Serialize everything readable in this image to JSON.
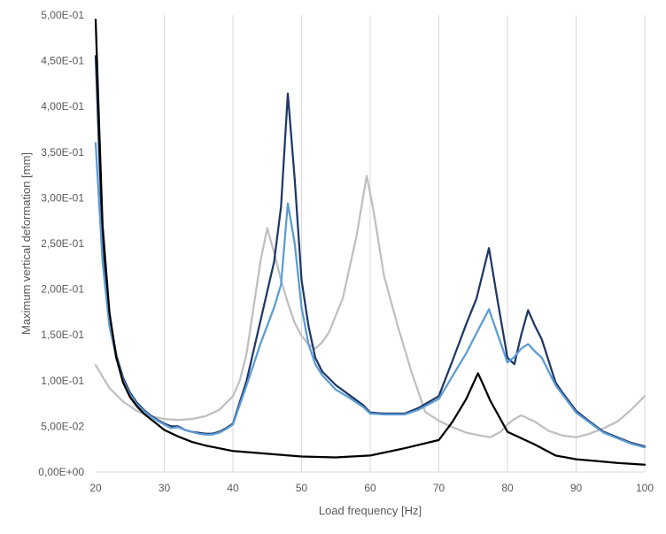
{
  "chart_data": {
    "type": "line",
    "title": "",
    "xlabel": "Load frequency [Hz]",
    "ylabel": "Maximum vertical deformation [mm]",
    "xlim": [
      20,
      100
    ],
    "ylim": [
      0,
      0.5
    ],
    "x_ticks": [
      20,
      30,
      40,
      50,
      60,
      70,
      80,
      90,
      100
    ],
    "x_tick_labels": [
      "20",
      "30",
      "40",
      "50",
      "60",
      "70",
      "80",
      "90",
      "100"
    ],
    "y_ticks": [
      0,
      0.05,
      0.1,
      0.15,
      0.2,
      0.25,
      0.3,
      0.35,
      0.4,
      0.45,
      0.5
    ],
    "y_tick_labels": [
      "0,00E+00",
      "5,00E-02",
      "1,00E-01",
      "1,50E-01",
      "2,00E-01",
      "2,50E-01",
      "3,00E-01",
      "3,50E-01",
      "4,00E-01",
      "4,50E-01",
      "5,00E-01"
    ],
    "grid": "vertical",
    "legend": "none",
    "series": [
      {
        "color": "#bfbfbf",
        "points": [
          [
            20,
            0.117
          ],
          [
            22,
            0.092
          ],
          [
            24,
            0.077
          ],
          [
            26,
            0.067
          ],
          [
            28,
            0.061
          ],
          [
            30,
            0.058
          ],
          [
            32,
            0.057
          ],
          [
            34,
            0.058
          ],
          [
            36,
            0.061
          ],
          [
            38,
            0.068
          ],
          [
            40,
            0.083
          ],
          [
            41,
            0.1
          ],
          [
            42,
            0.13
          ],
          [
            43,
            0.18
          ],
          [
            44,
            0.23
          ],
          [
            45,
            0.267
          ],
          [
            46,
            0.24
          ],
          [
            47,
            0.21
          ],
          [
            48,
            0.185
          ],
          [
            49,
            0.163
          ],
          [
            50,
            0.149
          ],
          [
            51,
            0.14
          ],
          [
            52,
            0.135
          ],
          [
            53,
            0.142
          ],
          [
            54,
            0.153
          ],
          [
            56,
            0.19
          ],
          [
            58,
            0.258
          ],
          [
            59.5,
            0.324
          ],
          [
            60.5,
            0.285
          ],
          [
            62,
            0.215
          ],
          [
            64,
            0.16
          ],
          [
            66,
            0.11
          ],
          [
            68,
            0.066
          ],
          [
            70,
            0.056
          ],
          [
            72,
            0.049
          ],
          [
            74,
            0.043
          ],
          [
            76,
            0.04
          ],
          [
            77.5,
            0.038
          ],
          [
            79,
            0.044
          ],
          [
            80,
            0.052
          ],
          [
            81,
            0.058
          ],
          [
            82,
            0.062
          ],
          [
            84,
            0.055
          ],
          [
            86,
            0.045
          ],
          [
            88,
            0.04
          ],
          [
            90,
            0.038
          ],
          [
            92,
            0.042
          ],
          [
            94,
            0.048
          ],
          [
            96,
            0.055
          ],
          [
            98,
            0.068
          ],
          [
            100,
            0.083
          ]
        ]
      },
      {
        "color": "#1f3864",
        "points": [
          [
            20,
            0.455
          ],
          [
            21,
            0.25
          ],
          [
            22,
            0.17
          ],
          [
            23,
            0.128
          ],
          [
            24,
            0.103
          ],
          [
            25,
            0.087
          ],
          [
            26,
            0.076
          ],
          [
            27,
            0.068
          ],
          [
            28,
            0.062
          ],
          [
            29,
            0.057
          ],
          [
            30,
            0.053
          ],
          [
            31,
            0.05
          ],
          [
            32,
            0.05
          ],
          [
            33,
            0.046
          ],
          [
            34,
            0.044
          ],
          [
            35,
            0.043
          ],
          [
            36,
            0.042
          ],
          [
            37,
            0.042
          ],
          [
            38,
            0.044
          ],
          [
            39,
            0.048
          ],
          [
            40,
            0.053
          ],
          [
            42,
            0.1
          ],
          [
            44,
            0.165
          ],
          [
            46,
            0.23
          ],
          [
            47,
            0.29
          ],
          [
            48,
            0.414
          ],
          [
            49,
            0.32
          ],
          [
            50,
            0.21
          ],
          [
            51,
            0.16
          ],
          [
            52,
            0.125
          ],
          [
            53,
            0.11
          ],
          [
            55,
            0.095
          ],
          [
            57,
            0.084
          ],
          [
            59,
            0.073
          ],
          [
            60,
            0.065
          ],
          [
            62,
            0.064
          ],
          [
            65,
            0.064
          ],
          [
            67,
            0.07
          ],
          [
            70,
            0.083
          ],
          [
            72,
            0.122
          ],
          [
            74,
            0.162
          ],
          [
            75.5,
            0.19
          ],
          [
            77.3,
            0.245
          ],
          [
            78.5,
            0.19
          ],
          [
            80,
            0.125
          ],
          [
            81,
            0.118
          ],
          [
            82,
            0.15
          ],
          [
            83,
            0.177
          ],
          [
            84,
            0.16
          ],
          [
            85,
            0.145
          ],
          [
            87,
            0.098
          ],
          [
            88,
            0.087
          ],
          [
            90,
            0.067
          ],
          [
            92,
            0.055
          ],
          [
            94,
            0.044
          ],
          [
            96,
            0.038
          ],
          [
            98,
            0.032
          ],
          [
            100,
            0.028
          ]
        ]
      },
      {
        "color": "#5b9bd5",
        "points": [
          [
            20,
            0.36
          ],
          [
            21,
            0.23
          ],
          [
            22,
            0.16
          ],
          [
            23,
            0.125
          ],
          [
            24,
            0.1
          ],
          [
            25,
            0.085
          ],
          [
            26,
            0.074
          ],
          [
            27,
            0.067
          ],
          [
            28,
            0.061
          ],
          [
            29,
            0.056
          ],
          [
            30,
            0.052
          ],
          [
            31,
            0.048
          ],
          [
            32,
            0.049
          ],
          [
            33,
            0.046
          ],
          [
            34,
            0.044
          ],
          [
            35,
            0.042
          ],
          [
            36,
            0.041
          ],
          [
            37,
            0.041
          ],
          [
            38,
            0.043
          ],
          [
            39,
            0.047
          ],
          [
            40,
            0.052
          ],
          [
            42,
            0.095
          ],
          [
            44,
            0.14
          ],
          [
            46,
            0.18
          ],
          [
            47,
            0.205
          ],
          [
            48,
            0.294
          ],
          [
            49,
            0.25
          ],
          [
            50,
            0.18
          ],
          [
            51,
            0.14
          ],
          [
            52,
            0.118
          ],
          [
            53,
            0.106
          ],
          [
            55,
            0.09
          ],
          [
            57,
            0.081
          ],
          [
            59,
            0.071
          ],
          [
            60,
            0.064
          ],
          [
            62,
            0.063
          ],
          [
            65,
            0.063
          ],
          [
            67,
            0.068
          ],
          [
            70,
            0.08
          ],
          [
            72,
            0.105
          ],
          [
            74,
            0.13
          ],
          [
            75.5,
            0.152
          ],
          [
            77.3,
            0.178
          ],
          [
            78.5,
            0.152
          ],
          [
            80,
            0.12
          ],
          [
            81,
            0.126
          ],
          [
            82,
            0.135
          ],
          [
            83,
            0.14
          ],
          [
            84,
            0.132
          ],
          [
            85,
            0.125
          ],
          [
            87,
            0.095
          ],
          [
            88,
            0.085
          ],
          [
            90,
            0.065
          ],
          [
            92,
            0.054
          ],
          [
            94,
            0.043
          ],
          [
            96,
            0.037
          ],
          [
            98,
            0.031
          ],
          [
            100,
            0.027
          ]
        ]
      },
      {
        "color": "#000000",
        "points": [
          [
            20,
            0.495
          ],
          [
            20.5,
            0.38
          ],
          [
            21,
            0.27
          ],
          [
            22,
            0.175
          ],
          [
            23,
            0.125
          ],
          [
            24,
            0.098
          ],
          [
            25,
            0.082
          ],
          [
            26,
            0.072
          ],
          [
            27,
            0.064
          ],
          [
            28,
            0.058
          ],
          [
            29,
            0.052
          ],
          [
            30,
            0.046
          ],
          [
            32,
            0.039
          ],
          [
            34,
            0.033
          ],
          [
            36,
            0.029
          ],
          [
            38,
            0.026
          ],
          [
            40,
            0.023
          ],
          [
            45,
            0.02
          ],
          [
            50,
            0.017
          ],
          [
            55,
            0.016
          ],
          [
            60,
            0.018
          ],
          [
            65,
            0.026
          ],
          [
            70,
            0.035
          ],
          [
            72,
            0.055
          ],
          [
            74,
            0.08
          ],
          [
            75.7,
            0.108
          ],
          [
            76.5,
            0.095
          ],
          [
            77.5,
            0.078
          ],
          [
            80,
            0.044
          ],
          [
            82,
            0.037
          ],
          [
            84,
            0.03
          ],
          [
            87,
            0.018
          ],
          [
            90,
            0.014
          ],
          [
            93,
            0.012
          ],
          [
            96,
            0.01
          ],
          [
            100,
            0.008
          ]
        ]
      }
    ]
  }
}
